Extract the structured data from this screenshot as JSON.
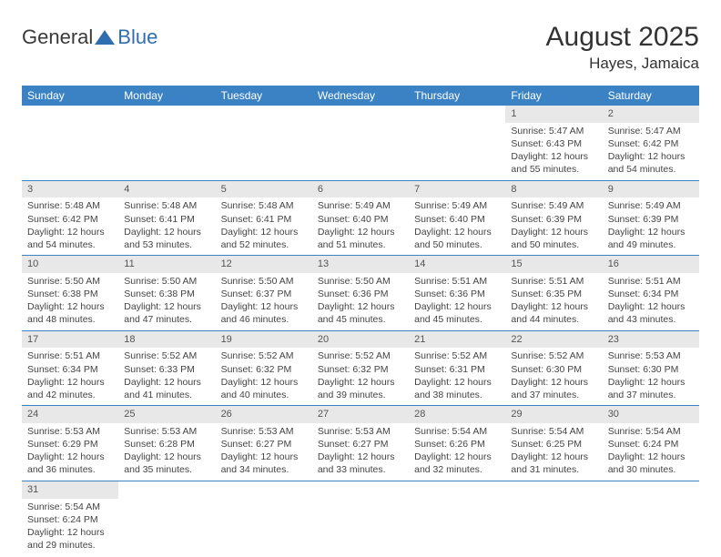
{
  "logo": {
    "text_general": "General",
    "text_blue": "Blue"
  },
  "header": {
    "month_title": "August 2025",
    "location": "Hayes, Jamaica"
  },
  "colors": {
    "header_bg": "#3b82c4",
    "header_text": "#ffffff",
    "daynum_bg": "#e8e8e8",
    "row_divider": "#3b82c4",
    "body_text": "#444444"
  },
  "weekdays": [
    "Sunday",
    "Monday",
    "Tuesday",
    "Wednesday",
    "Thursday",
    "Friday",
    "Saturday"
  ],
  "weeks": [
    {
      "nums": [
        "",
        "",
        "",
        "",
        "",
        "1",
        "2"
      ],
      "cells": [
        null,
        null,
        null,
        null,
        null,
        {
          "sunrise": "Sunrise: 5:47 AM",
          "sunset": "Sunset: 6:43 PM",
          "day1": "Daylight: 12 hours",
          "day2": "and 55 minutes."
        },
        {
          "sunrise": "Sunrise: 5:47 AM",
          "sunset": "Sunset: 6:42 PM",
          "day1": "Daylight: 12 hours",
          "day2": "and 54 minutes."
        }
      ]
    },
    {
      "nums": [
        "3",
        "4",
        "5",
        "6",
        "7",
        "8",
        "9"
      ],
      "cells": [
        {
          "sunrise": "Sunrise: 5:48 AM",
          "sunset": "Sunset: 6:42 PM",
          "day1": "Daylight: 12 hours",
          "day2": "and 54 minutes."
        },
        {
          "sunrise": "Sunrise: 5:48 AM",
          "sunset": "Sunset: 6:41 PM",
          "day1": "Daylight: 12 hours",
          "day2": "and 53 minutes."
        },
        {
          "sunrise": "Sunrise: 5:48 AM",
          "sunset": "Sunset: 6:41 PM",
          "day1": "Daylight: 12 hours",
          "day2": "and 52 minutes."
        },
        {
          "sunrise": "Sunrise: 5:49 AM",
          "sunset": "Sunset: 6:40 PM",
          "day1": "Daylight: 12 hours",
          "day2": "and 51 minutes."
        },
        {
          "sunrise": "Sunrise: 5:49 AM",
          "sunset": "Sunset: 6:40 PM",
          "day1": "Daylight: 12 hours",
          "day2": "and 50 minutes."
        },
        {
          "sunrise": "Sunrise: 5:49 AM",
          "sunset": "Sunset: 6:39 PM",
          "day1": "Daylight: 12 hours",
          "day2": "and 50 minutes."
        },
        {
          "sunrise": "Sunrise: 5:49 AM",
          "sunset": "Sunset: 6:39 PM",
          "day1": "Daylight: 12 hours",
          "day2": "and 49 minutes."
        }
      ]
    },
    {
      "nums": [
        "10",
        "11",
        "12",
        "13",
        "14",
        "15",
        "16"
      ],
      "cells": [
        {
          "sunrise": "Sunrise: 5:50 AM",
          "sunset": "Sunset: 6:38 PM",
          "day1": "Daylight: 12 hours",
          "day2": "and 48 minutes."
        },
        {
          "sunrise": "Sunrise: 5:50 AM",
          "sunset": "Sunset: 6:38 PM",
          "day1": "Daylight: 12 hours",
          "day2": "and 47 minutes."
        },
        {
          "sunrise": "Sunrise: 5:50 AM",
          "sunset": "Sunset: 6:37 PM",
          "day1": "Daylight: 12 hours",
          "day2": "and 46 minutes."
        },
        {
          "sunrise": "Sunrise: 5:50 AM",
          "sunset": "Sunset: 6:36 PM",
          "day1": "Daylight: 12 hours",
          "day2": "and 45 minutes."
        },
        {
          "sunrise": "Sunrise: 5:51 AM",
          "sunset": "Sunset: 6:36 PM",
          "day1": "Daylight: 12 hours",
          "day2": "and 45 minutes."
        },
        {
          "sunrise": "Sunrise: 5:51 AM",
          "sunset": "Sunset: 6:35 PM",
          "day1": "Daylight: 12 hours",
          "day2": "and 44 minutes."
        },
        {
          "sunrise": "Sunrise: 5:51 AM",
          "sunset": "Sunset: 6:34 PM",
          "day1": "Daylight: 12 hours",
          "day2": "and 43 minutes."
        }
      ]
    },
    {
      "nums": [
        "17",
        "18",
        "19",
        "20",
        "21",
        "22",
        "23"
      ],
      "cells": [
        {
          "sunrise": "Sunrise: 5:51 AM",
          "sunset": "Sunset: 6:34 PM",
          "day1": "Daylight: 12 hours",
          "day2": "and 42 minutes."
        },
        {
          "sunrise": "Sunrise: 5:52 AM",
          "sunset": "Sunset: 6:33 PM",
          "day1": "Daylight: 12 hours",
          "day2": "and 41 minutes."
        },
        {
          "sunrise": "Sunrise: 5:52 AM",
          "sunset": "Sunset: 6:32 PM",
          "day1": "Daylight: 12 hours",
          "day2": "and 40 minutes."
        },
        {
          "sunrise": "Sunrise: 5:52 AM",
          "sunset": "Sunset: 6:32 PM",
          "day1": "Daylight: 12 hours",
          "day2": "and 39 minutes."
        },
        {
          "sunrise": "Sunrise: 5:52 AM",
          "sunset": "Sunset: 6:31 PM",
          "day1": "Daylight: 12 hours",
          "day2": "and 38 minutes."
        },
        {
          "sunrise": "Sunrise: 5:52 AM",
          "sunset": "Sunset: 6:30 PM",
          "day1": "Daylight: 12 hours",
          "day2": "and 37 minutes."
        },
        {
          "sunrise": "Sunrise: 5:53 AM",
          "sunset": "Sunset: 6:30 PM",
          "day1": "Daylight: 12 hours",
          "day2": "and 37 minutes."
        }
      ]
    },
    {
      "nums": [
        "24",
        "25",
        "26",
        "27",
        "28",
        "29",
        "30"
      ],
      "cells": [
        {
          "sunrise": "Sunrise: 5:53 AM",
          "sunset": "Sunset: 6:29 PM",
          "day1": "Daylight: 12 hours",
          "day2": "and 36 minutes."
        },
        {
          "sunrise": "Sunrise: 5:53 AM",
          "sunset": "Sunset: 6:28 PM",
          "day1": "Daylight: 12 hours",
          "day2": "and 35 minutes."
        },
        {
          "sunrise": "Sunrise: 5:53 AM",
          "sunset": "Sunset: 6:27 PM",
          "day1": "Daylight: 12 hours",
          "day2": "and 34 minutes."
        },
        {
          "sunrise": "Sunrise: 5:53 AM",
          "sunset": "Sunset: 6:27 PM",
          "day1": "Daylight: 12 hours",
          "day2": "and 33 minutes."
        },
        {
          "sunrise": "Sunrise: 5:54 AM",
          "sunset": "Sunset: 6:26 PM",
          "day1": "Daylight: 12 hours",
          "day2": "and 32 minutes."
        },
        {
          "sunrise": "Sunrise: 5:54 AM",
          "sunset": "Sunset: 6:25 PM",
          "day1": "Daylight: 12 hours",
          "day2": "and 31 minutes."
        },
        {
          "sunrise": "Sunrise: 5:54 AM",
          "sunset": "Sunset: 6:24 PM",
          "day1": "Daylight: 12 hours",
          "day2": "and 30 minutes."
        }
      ]
    },
    {
      "nums": [
        "31",
        "",
        "",
        "",
        "",
        "",
        ""
      ],
      "cells": [
        {
          "sunrise": "Sunrise: 5:54 AM",
          "sunset": "Sunset: 6:24 PM",
          "day1": "Daylight: 12 hours",
          "day2": "and 29 minutes."
        },
        null,
        null,
        null,
        null,
        null,
        null
      ]
    }
  ]
}
